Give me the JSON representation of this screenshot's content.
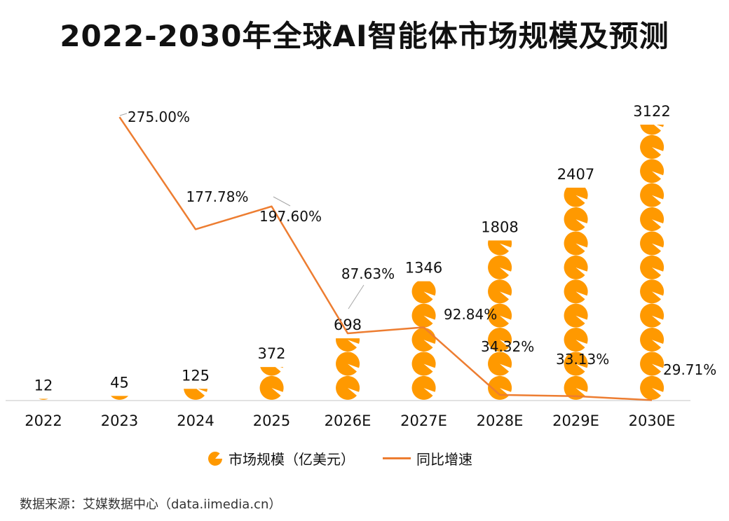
{
  "chart_data": {
    "type": "bar",
    "title": "2022-2030年全球AI智能体市场规模及预测",
    "categories": [
      "2022",
      "2023",
      "2024",
      "2025",
      "2026E",
      "2027E",
      "2028E",
      "2029E",
      "2030E"
    ],
    "series": [
      {
        "name": "市场规模（亿美元）",
        "type": "bar",
        "values": [
          12,
          45,
          125,
          372,
          698,
          1346,
          1808,
          2407,
          3122
        ],
        "labels": [
          "12",
          "45",
          "125",
          "372",
          "698",
          "1346",
          "1808",
          "2407",
          "3122"
        ]
      },
      {
        "name": "同比增速",
        "type": "line",
        "values": [
          null,
          275.0,
          177.78,
          197.6,
          87.63,
          92.84,
          34.32,
          33.13,
          29.71
        ],
        "labels": [
          null,
          "275.00%",
          "177.78%",
          "197.60%",
          "87.63%",
          "92.84%",
          "34.32%",
          "33.13%",
          "29.71%"
        ]
      }
    ],
    "bar_color": "#FF9900",
    "line_color": "#ED7D31",
    "grid": false,
    "legend_position": "bottom"
  },
  "source": "数据来源：艾媒数据中心（data.iimedia.cn）"
}
